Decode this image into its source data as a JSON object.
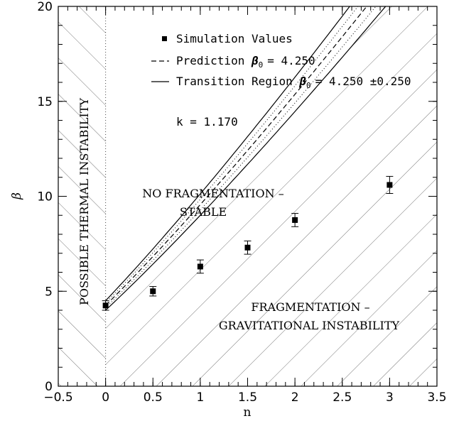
{
  "chart_data": {
    "type": "line",
    "xlabel": "n",
    "ylabel": "β",
    "xlim": [
      -0.5,
      3.5
    ],
    "ylim": [
      0,
      20
    ],
    "x_ticks": [
      -0.5,
      0,
      0.5,
      1,
      1.5,
      2,
      2.5,
      3,
      3.5
    ],
    "x_tick_labels": [
      "−0.5",
      "0",
      "0.5",
      "1",
      "1.5",
      "2",
      "2.5",
      "3",
      "3.5"
    ],
    "y_ticks": [
      0,
      5,
      10,
      15,
      20
    ],
    "y_tick_labels": [
      "0",
      "5",
      "10",
      "15",
      "20"
    ],
    "legend": {
      "simulation": "Simulation Values",
      "prediction": "Prediction",
      "prediction_value": "= 4.250",
      "transition": "Transition Region",
      "transition_value": "= 4.250 ±0.250",
      "beta_symbol": "β",
      "beta_sub": "0",
      "k_label": "k   = 1.170"
    },
    "series": [
      {
        "name": "Simulation Values",
        "style": "square-markers-with-errorbars",
        "x": [
          0,
          0.5,
          1,
          1.5,
          2,
          3
        ],
        "y": [
          4.25,
          5.0,
          6.3,
          7.3,
          8.75,
          10.6
        ],
        "yerr": [
          0.25,
          0.25,
          0.35,
          0.35,
          0.35,
          0.45
        ]
      },
      {
        "name": "Prediction",
        "style": "dashed",
        "beta0": 4.25,
        "k": 1.17
      },
      {
        "name": "Transition Region",
        "style": "solid-band",
        "beta0": 4.25,
        "delta": 0.25,
        "k": 1.17
      }
    ],
    "regions": {
      "thermal": "POSSIBLE THERMAL INSTABILITY",
      "stable_line1": "NO FRAGMENTATION –",
      "stable_line2": "STABLE",
      "frag_line1": "FRAGMENTATION –",
      "frag_line2": "GRAVITATIONAL INSTABILITY"
    },
    "colors": {
      "ink": "#000000",
      "hatch": "#777777",
      "background": "#ffffff"
    }
  }
}
